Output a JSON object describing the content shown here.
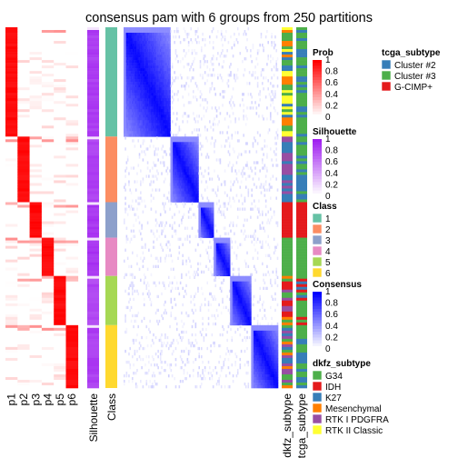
{
  "chart_data": {
    "type": "heatmap",
    "title": "consensus pam with 6 groups from 250 partitions",
    "columns": {
      "probability": [
        "p1",
        "p2",
        "p3",
        "p4",
        "p5",
        "p6"
      ],
      "silhouette": "Silhouette",
      "class": "Class",
      "annotations": [
        "dkfz_subtype",
        "tcga_subtype"
      ]
    },
    "groups": [
      {
        "class": "1",
        "n_samples": 40,
        "mean_silhouette": 0.87
      },
      {
        "class": "2",
        "n_samples": 24,
        "mean_silhouette": 0.85
      },
      {
        "class": "3",
        "n_samples": 13,
        "mean_silhouette": 0.9
      },
      {
        "class": "4",
        "n_samples": 14,
        "mean_silhouette": 0.91
      },
      {
        "class": "5",
        "n_samples": 18,
        "mean_silhouette": 0.83
      },
      {
        "class": "6",
        "n_samples": 23,
        "mean_silhouette": 0.86
      }
    ],
    "legends": {
      "prob": {
        "title": "Prob",
        "ticks": [
          "1",
          "0.8",
          "0.6",
          "0.4",
          "0.2",
          "0"
        ],
        "range": [
          0,
          1
        ],
        "color_low": "#ffffff",
        "color_high": "#ff0000"
      },
      "silhouette": {
        "title": "Silhouette",
        "ticks": [
          "1",
          "0.8",
          "0.6",
          "0.4",
          "0.2",
          "0"
        ],
        "range": [
          0,
          1
        ],
        "color_low": "#ffffff",
        "color_high": "#a020f0"
      },
      "class": {
        "title": "Class",
        "items": [
          {
            "label": "1",
            "color": "#66c2a5"
          },
          {
            "label": "2",
            "color": "#fc8d62"
          },
          {
            "label": "3",
            "color": "#8da0cb"
          },
          {
            "label": "4",
            "color": "#e78ac3"
          },
          {
            "label": "5",
            "color": "#a6d854"
          },
          {
            "label": "6",
            "color": "#ffd92f"
          }
        ]
      },
      "consensus": {
        "title": "Consensus",
        "ticks": [
          "1",
          "0.8",
          "0.6",
          "0.4",
          "0.2",
          "0"
        ],
        "range": [
          0,
          1
        ],
        "color_low": "#ffffff",
        "color_high": "#0000ff"
      },
      "dkfz_subtype": {
        "title": "dkfz_subtype",
        "items": [
          {
            "label": "G34",
            "color": "#4daf4a"
          },
          {
            "label": "IDH",
            "color": "#e41a1c"
          },
          {
            "label": "K27",
            "color": "#377eb8"
          },
          {
            "label": "Mesenchymal",
            "color": "#ff7f00"
          },
          {
            "label": "RTK I PDGFRA",
            "color": "#984ea3"
          },
          {
            "label": "RTK II Classic",
            "color": "#ffff33"
          }
        ]
      },
      "tcga_subtype": {
        "title": "tcga_subtype",
        "items": [
          {
            "label": "Cluster #2",
            "color": "#377eb8"
          },
          {
            "label": "Cluster #3",
            "color": "#4daf4a"
          },
          {
            "label": "G-CIMP+",
            "color": "#e41a1c"
          }
        ]
      }
    }
  }
}
